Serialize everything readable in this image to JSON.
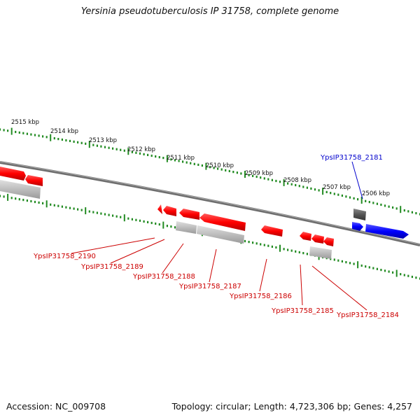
{
  "title": "Yersinia pseudotuberculosis IP 31758, complete genome",
  "footer": {
    "accession": "Accession: NC_009708",
    "summary": "Topology: circular; Length: 4,723,306 bp; Genes: 4,257"
  },
  "ruler_labels": [
    "2515 kbp",
    "2514 kbp",
    "2513 kbp",
    "2512 kbp",
    "2511 kbp",
    "2510 kbp",
    "2509 kbp",
    "2508 kbp",
    "2507 kbp",
    "2506 kbp"
  ],
  "gene_labels": [
    {
      "text": "YpsIP31758_2181",
      "color": "#0000cc"
    },
    {
      "text": "YpsIP31758_2190",
      "color": "#cc0000"
    },
    {
      "text": "YpsIP31758_2189",
      "color": "#cc0000"
    },
    {
      "text": "YpsIP31758_2188",
      "color": "#cc0000"
    },
    {
      "text": "YpsIP31758_2187",
      "color": "#cc0000"
    },
    {
      "text": "YpsIP31758_2186",
      "color": "#cc0000"
    },
    {
      "text": "YpsIP31758_2185",
      "color": "#cc0000"
    },
    {
      "text": "YpsIP31758_2184",
      "color": "#cc0000"
    }
  ],
  "colors": {
    "reverse_strand": "#ff0000",
    "forward_strand": "#0000ff",
    "backbone": "#707070",
    "ticks": "#228b22",
    "shadow": "#b0b0b0"
  }
}
